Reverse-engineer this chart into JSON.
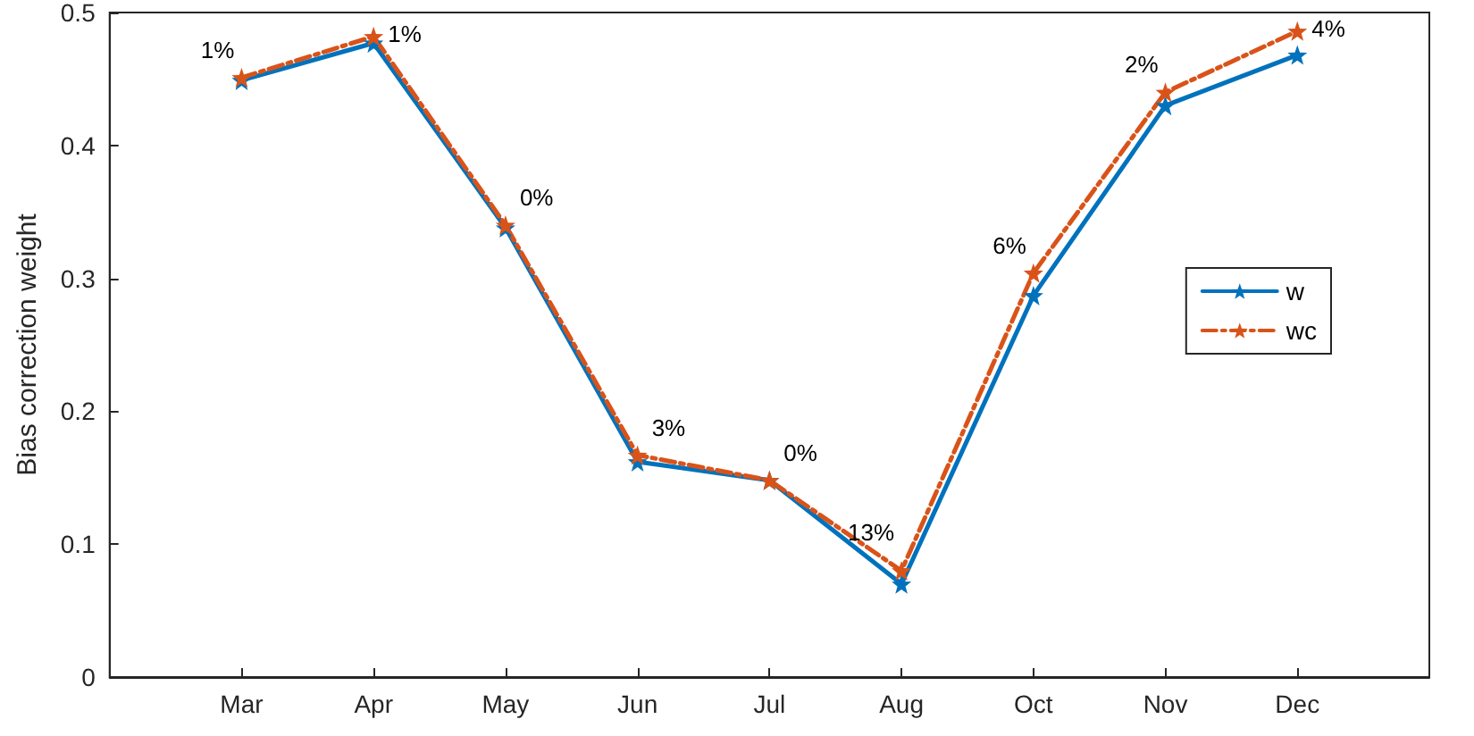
{
  "chart_data": {
    "type": "line",
    "ylabel": "Bias correction weight",
    "categories": [
      "Mar",
      "Apr",
      "May",
      "Jun",
      "Jul",
      "Aug",
      "Oct",
      "Nov",
      "Dec"
    ],
    "series": [
      {
        "name": "w",
        "color": "#0072bd",
        "line_style": "solid",
        "values": [
          0.449,
          0.477,
          0.338,
          0.162,
          0.148,
          0.07,
          0.287,
          0.43,
          0.468
        ]
      },
      {
        "name": "wc",
        "color": "#d95319",
        "line_style": "dashed",
        "values": [
          0.451,
          0.482,
          0.34,
          0.167,
          0.148,
          0.08,
          0.304,
          0.44,
          0.486
        ]
      }
    ],
    "ylim": [
      0,
      0.5
    ],
    "yticks": [
      0,
      0.1,
      0.2,
      0.3,
      0.4,
      0.5
    ],
    "grid": false,
    "legend": "right",
    "marker": "star",
    "annotations": [
      {
        "text": "1%",
        "x": "Mar",
        "y": 0.451
      },
      {
        "text": "1%",
        "x": "Apr",
        "y": 0.482
      },
      {
        "text": "0%",
        "x": "May",
        "y": 0.34
      },
      {
        "text": "3%",
        "x": "Jun",
        "y": 0.167
      },
      {
        "text": "0%",
        "x": "Jul",
        "y": 0.148
      },
      {
        "text": "13%",
        "x": "Aug",
        "y": 0.08
      },
      {
        "text": "6%",
        "x": "Oct",
        "y": 0.304
      },
      {
        "text": "2%",
        "x": "Nov",
        "y": 0.44
      },
      {
        "text": "4%",
        "x": "Dec",
        "y": 0.486
      }
    ]
  }
}
